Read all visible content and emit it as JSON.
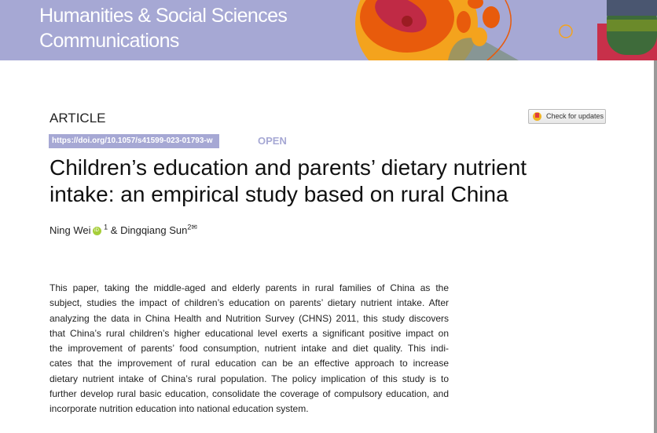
{
  "header": {
    "journal_line1": "Humanities & Social Sciences",
    "journal_line2": "Communications",
    "banner_color": "#a6a8d4"
  },
  "article": {
    "type_label": "ARTICLE",
    "doi": "https://doi.org/10.1057/s41599-023-01793-w",
    "access": "OPEN",
    "check_updates": "Check for updates",
    "title_line1": "Children’s education and parents’ dietary nutrient",
    "title_line2": "intake: an empirical study based on rural China",
    "authors": [
      {
        "name": "Ning Wei",
        "affiliation": "1",
        "orcid": true
      },
      {
        "name": "Dingqiang Sun",
        "affiliation": "2",
        "corresponding": true
      }
    ],
    "author_separator": "&",
    "abstract_lines": [
      "This paper, taking the middle-aged and elderly parents in rural families of China as the",
      "subject, studies the impact of children’s education on parents’ dietary nutrient intake. After",
      "analyzing the data in China Health and Nutrition Survey (CHNS) 2011, this study discovers",
      "that China’s rural children’s higher educational level exerts a significant positive impact on",
      "the improvement of parents’ food consumption, nutrient intake and diet quality. This indi-",
      "cates that the improvement of rural education can be an effective approach to increase",
      "dietary nutrient intake of China’s rural population. The policy implication of this study is to",
      "further develop rural basic education, consolidate the coverage of compulsory education, and",
      "incorporate nutrition education into national education system."
    ]
  }
}
